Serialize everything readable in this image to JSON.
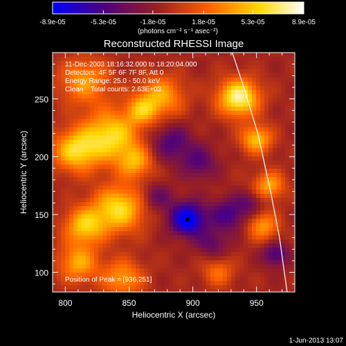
{
  "chart_data": {
    "type": "heatmap",
    "title": "Reconstructed RHESSI Image",
    "xlabel": "Heliocentric X (arcsec)",
    "ylabel": "Heliocentric Y (arcsec)",
    "xlim": [
      790,
      980
    ],
    "ylim": [
      83,
      290
    ],
    "xticks": [
      800,
      850,
      900,
      950
    ],
    "yticks": [
      100,
      150,
      200,
      250
    ],
    "colorbar": {
      "min": -8.9e-05,
      "max": 8.9e-05,
      "tick_labels": [
        "-8.9e-05",
        "-5.3e-05",
        "-1.8e-05",
        "1.8e-05",
        "5.3e-05",
        "8.9e-05"
      ],
      "units_label": "(photons cm⁻² s⁻¹ asec⁻²)",
      "colormap": [
        "#0000ff",
        "#4b0080",
        "#9a2020",
        "#ff6000",
        "#ffd800",
        "#ffffff"
      ]
    },
    "annotations": [
      "11-Dec-2003 18:16:32.000 to 18:20:04.000",
      "Detectors: 4F 5F 6F 7F 8F, Att 0",
      "Energy Range: 25.0 - 50.0 keV",
      "Clean    Total counts: 2.63E+03"
    ],
    "peak_label": "Position of Peak = [936,251]",
    "peak": [
      936,
      251
    ],
    "limb_curve": [
      [
        931,
        290
      ],
      [
        940,
        260
      ],
      [
        951,
        220
      ],
      [
        961,
        170
      ],
      [
        968,
        130
      ],
      [
        974,
        83
      ]
    ],
    "minimum_marker": [
      896,
      146
    ],
    "features": [
      {
        "x": 836,
        "y": 218,
        "r": 22,
        "v": 0.8
      },
      {
        "x": 808,
        "y": 205,
        "r": 18,
        "v": 0.75
      },
      {
        "x": 855,
        "y": 195,
        "r": 14,
        "v": 0.55
      },
      {
        "x": 842,
        "y": 155,
        "r": 20,
        "v": 0.8
      },
      {
        "x": 815,
        "y": 140,
        "r": 16,
        "v": 0.7
      },
      {
        "x": 875,
        "y": 252,
        "r": 18,
        "v": 0.6
      },
      {
        "x": 815,
        "y": 265,
        "r": 20,
        "v": 0.55
      },
      {
        "x": 860,
        "y": 240,
        "r": 12,
        "v": 0.5
      },
      {
        "x": 936,
        "y": 251,
        "r": 16,
        "v": 1.0
      },
      {
        "x": 950,
        "y": 215,
        "r": 12,
        "v": 0.7
      },
      {
        "x": 960,
        "y": 175,
        "r": 12,
        "v": 0.6
      },
      {
        "x": 955,
        "y": 140,
        "r": 12,
        "v": 0.55
      },
      {
        "x": 845,
        "y": 95,
        "r": 16,
        "v": 0.55
      },
      {
        "x": 810,
        "y": 108,
        "r": 16,
        "v": 0.6
      },
      {
        "x": 920,
        "y": 100,
        "r": 12,
        "v": 0.4
      },
      {
        "x": 896,
        "y": 146,
        "r": 14,
        "v": -0.95
      },
      {
        "x": 883,
        "y": 212,
        "r": 16,
        "v": -0.45
      },
      {
        "x": 905,
        "y": 195,
        "r": 14,
        "v": -0.4
      },
      {
        "x": 928,
        "y": 150,
        "r": 14,
        "v": -0.5
      },
      {
        "x": 915,
        "y": 125,
        "r": 12,
        "v": -0.35
      },
      {
        "x": 872,
        "y": 165,
        "r": 12,
        "v": -0.35
      },
      {
        "x": 965,
        "y": 115,
        "r": 10,
        "v": -0.5
      },
      {
        "x": 945,
        "y": 160,
        "r": 10,
        "v": -0.3
      }
    ]
  },
  "footer_timestamp": "1-Jun-2013 13:07"
}
